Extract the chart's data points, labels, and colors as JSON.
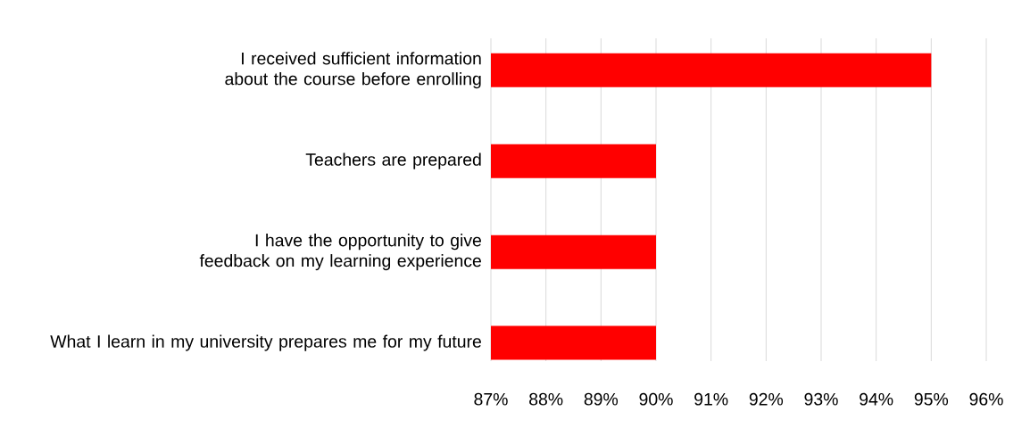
{
  "chart_data": {
    "type": "bar",
    "orientation": "horizontal",
    "categories": [
      "I received sufficient information about the course before enrolling",
      "Teachers are prepared",
      "I have the opportunity to give feedback on my learning experience",
      "What I learn in my university prepares me for my future"
    ],
    "values": [
      95,
      90,
      90,
      90
    ],
    "color": "#ff0000",
    "xlim": [
      87,
      96
    ],
    "xticks": [
      {
        "value": 87,
        "label": "87%"
      },
      {
        "value": 88,
        "label": "88%"
      },
      {
        "value": 89,
        "label": "89%"
      },
      {
        "value": 90,
        "label": "90%"
      },
      {
        "value": 91,
        "label": "91%"
      },
      {
        "value": 92,
        "label": "92%"
      },
      {
        "value": 93,
        "label": "93%"
      },
      {
        "value": 94,
        "label": "94%"
      },
      {
        "value": 95,
        "label": "95%"
      },
      {
        "value": 96,
        "label": "96%"
      }
    ],
    "grid": "x"
  }
}
